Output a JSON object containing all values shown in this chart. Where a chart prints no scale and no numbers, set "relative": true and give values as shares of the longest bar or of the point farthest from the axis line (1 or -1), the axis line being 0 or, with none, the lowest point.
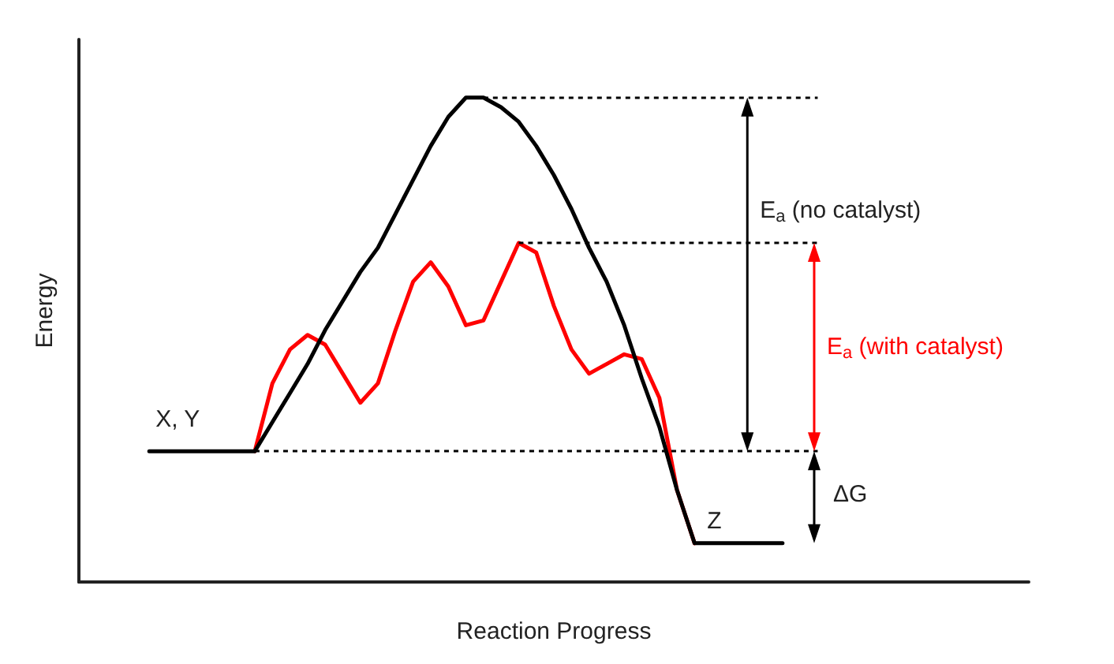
{
  "chart_data": {
    "type": "line",
    "relative": true,
    "xlabel": "Reaction Progress",
    "ylabel": "Energy",
    "grid": false,
    "marker": "none",
    "line_style": "solid",
    "categories": [
      null,
      null,
      null,
      null,
      null,
      null,
      null,
      null,
      null,
      null,
      null,
      null,
      null,
      null,
      null,
      null,
      null,
      null,
      null,
      null,
      null,
      null,
      null,
      null,
      null,
      null,
      null,
      null,
      null,
      null,
      null,
      null,
      null,
      null,
      null,
      null,
      null,
      null,
      null,
      null,
      null,
      null,
      null,
      null,
      null,
      null,
      null,
      null,
      null,
      null,
      null,
      null,
      null,
      null,
      null
    ],
    "series": [
      {
        "color": "#000000",
        "values": [
          null,
          null,
          null,
          null,
          0.27,
          0.27,
          0.27,
          0.27,
          0.27,
          0.27,
          0.27,
          0.33,
          0.39,
          0.45,
          0.52,
          0.58,
          0.64,
          0.69,
          0.76,
          0.83,
          0.9,
          0.96,
          1,
          1,
          0.98,
          0.95,
          0.9,
          0.84,
          0.77,
          0.69,
          0.62,
          0.53,
          0.42,
          0.32,
          0.19,
          0.08,
          0.08,
          0.08,
          0.08,
          0.08,
          0.08,
          null,
          null,
          null,
          null,
          null,
          null,
          null,
          null,
          null,
          null,
          null,
          null,
          null,
          null
        ]
      },
      {
        "color": "#ff0000",
        "values": [
          null,
          null,
          null,
          null,
          null,
          null,
          null,
          null,
          null,
          null,
          0.27,
          0.41,
          0.48,
          0.51,
          0.49,
          0.43,
          0.37,
          0.41,
          0.52,
          0.62,
          0.66,
          0.61,
          0.53,
          0.54,
          0.62,
          0.7,
          0.68,
          0.57,
          0.48,
          0.43,
          0.45,
          0.47,
          0.46,
          0.38,
          0.19,
          0.08,
          null,
          null,
          null,
          null,
          null,
          null,
          null,
          null,
          null,
          null,
          null,
          null,
          null,
          null,
          null,
          null,
          null,
          null,
          null
        ]
      }
    ],
    "ref_lines": [
      {
        "axis": "y",
        "value": 1,
        "color": "#000000",
        "line_style": "dotted"
      },
      {
        "axis": "y",
        "value": 0.7,
        "color": "#000000",
        "line_style": "dotted"
      },
      {
        "axis": "y",
        "value": 0.27,
        "color": "#000000",
        "line_style": "dotted"
      }
    ],
    "annotations": [
      "E$_{a}$ (no catalyst)",
      "E$_{a}$ (with catalyst)",
      "ΔG",
      "X, Y",
      "Z"
    ]
  }
}
